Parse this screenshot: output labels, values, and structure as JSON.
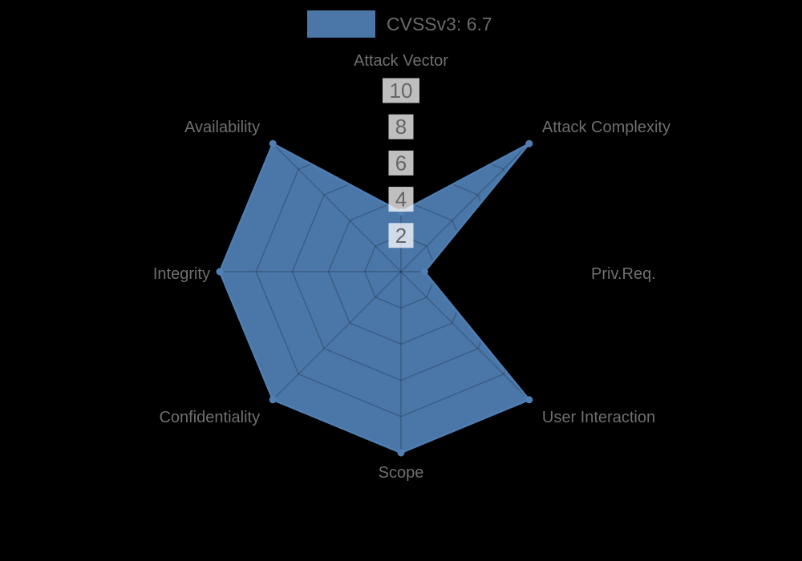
{
  "page": {
    "background": "#000000"
  },
  "legend": {
    "label": "CVSSv3: 6.7",
    "swatch_color": "#4a76a8"
  },
  "chart_data": {
    "type": "radar",
    "title": "CVSSv3: 6.7",
    "categories": [
      "Attack Vector",
      "Attack Complexity",
      "Priv.Req.",
      "User Interaction",
      "Scope",
      "Confidentiality",
      "Integrity",
      "Availability"
    ],
    "series": [
      {
        "name": "CVSSv3: 6.7",
        "values": [
          3.3,
          10,
          1.3,
          10,
          10,
          10,
          10,
          10
        ]
      }
    ],
    "ticks": [
      2,
      4,
      6,
      8,
      10
    ],
    "rmin": 0,
    "rmax": 10,
    "grid": true,
    "grid_shape": "polygon",
    "legend_position": "top",
    "colors": {
      "series_fill": "#4a76a8",
      "series_border": "#4f7eb2",
      "point": "#517fb4",
      "grid_line": "rgba(0,0,0,0.2)",
      "tick_backdrop": "rgba(255,255,255,0.75)",
      "tick_text": "#666666",
      "axis_label": "#6f6f6f",
      "background": "#000000"
    }
  }
}
